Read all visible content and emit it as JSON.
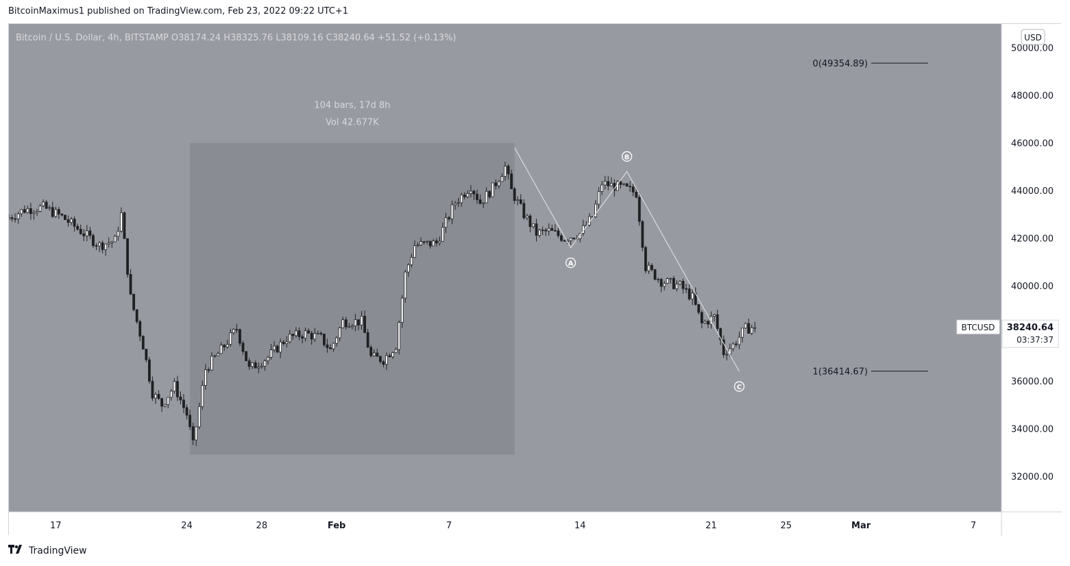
{
  "published_line": "BitcoinMaximus1 published on TradingView.com, Feb 23, 2022 09:22 UTC+1",
  "header": {
    "symbol_title": "Bitcoin / U.S. Dollar, 4h, BITSTAMP",
    "ohlc": [
      {
        "label": "O",
        "value": "38174.24"
      },
      {
        "label": "H",
        "value": "38325.76"
      },
      {
        "label": "L",
        "value": "38109.16"
      },
      {
        "label": "C",
        "value": "38240.64"
      }
    ],
    "change": "+51.52 (+0.13%)"
  },
  "currency_button": "USD",
  "brand": "TradingView",
  "colors": {
    "background": "#989aa2",
    "range_box": "#8a8c94",
    "candle": "#1f2023",
    "wave_line": "#d9dadd",
    "text_light": "#d8d9dc",
    "axis_bg": "#ffffff",
    "axis_text": "#131722"
  },
  "chart_data": {
    "type": "candlestick",
    "interval": "4h",
    "y_axis": {
      "ticks": [
        32000,
        34000,
        36000,
        38000,
        40000,
        42000,
        44000,
        46000,
        48000,
        50000
      ],
      "tick_labels": [
        "32000.00",
        "34000.00",
        "36000.00",
        "38000.00",
        "40000.00",
        "42000.00",
        "44000.00",
        "46000.00",
        "48000.00",
        "50000.00"
      ],
      "ylim": [
        30500,
        51000
      ]
    },
    "x_axis": {
      "tick_labels": [
        "17",
        "24",
        "28",
        "Feb",
        "7",
        "14",
        "21",
        "25",
        "Mar",
        "7"
      ],
      "tick_dates": [
        "2022-01-17",
        "2022-01-24",
        "2022-01-28",
        "2022-02-01",
        "2022-02-07",
        "2022-02-14",
        "2022-02-21",
        "2022-02-25",
        "2022-03-01",
        "2022-03-07"
      ],
      "xlim": [
        "2022-01-14T12:00",
        "2022-03-08T12:00"
      ]
    },
    "price_path": [
      [
        "2022-01-14T12:00",
        42800
      ],
      [
        "2022-01-15T12:00",
        43200
      ],
      [
        "2022-01-16T12:00",
        43300
      ],
      [
        "2022-01-17T12:00",
        42900
      ],
      [
        "2022-01-18T12:00",
        42300
      ],
      [
        "2022-01-19T12:00",
        41700
      ],
      [
        "2022-01-20T08:00",
        41900
      ],
      [
        "2022-01-20T16:00",
        43000
      ],
      [
        "2022-01-21T04:00",
        39500
      ],
      [
        "2022-01-21T20:00",
        37500
      ],
      [
        "2022-01-22T08:00",
        35500
      ],
      [
        "2022-01-22T20:00",
        35000
      ],
      [
        "2022-01-23T12:00",
        35800
      ],
      [
        "2022-01-24T04:00",
        34600
      ],
      [
        "2022-01-24T12:00",
        33300
      ],
      [
        "2022-01-25T04:00",
        36500
      ],
      [
        "2022-01-26T00:00",
        37300
      ],
      [
        "2022-01-26T20:00",
        38200
      ],
      [
        "2022-01-27T12:00",
        36500
      ],
      [
        "2022-01-28T12:00",
        37000
      ],
      [
        "2022-01-29T12:00",
        37800
      ],
      [
        "2022-01-30T12:00",
        38000
      ],
      [
        "2022-01-31T08:00",
        37800
      ],
      [
        "2022-01-31T20:00",
        37300
      ],
      [
        "2022-02-01T12:00",
        38500
      ],
      [
        "2022-02-02T12:00",
        38500
      ],
      [
        "2022-02-03T00:00",
        37000
      ],
      [
        "2022-02-03T16:00",
        36900
      ],
      [
        "2022-02-04T08:00",
        37500
      ],
      [
        "2022-02-04T20:00",
        40500
      ],
      [
        "2022-02-05T08:00",
        41700
      ],
      [
        "2022-02-06T12:00",
        41800
      ],
      [
        "2022-02-07T12:00",
        43500
      ],
      [
        "2022-02-08T08:00",
        44200
      ],
      [
        "2022-02-08T20:00",
        43500
      ],
      [
        "2022-02-09T12:00",
        44100
      ],
      [
        "2022-02-10T04:00",
        45000
      ],
      [
        "2022-02-10T12:00",
        44000
      ],
      [
        "2022-02-11T04:00",
        43000
      ],
      [
        "2022-02-11T20:00",
        42200
      ],
      [
        "2022-02-12T12:00",
        42300
      ],
      [
        "2022-02-13T08:00",
        42000
      ],
      [
        "2022-02-14T04:00",
        42200
      ],
      [
        "2022-02-14T20:00",
        42900
      ],
      [
        "2022-02-15T08:00",
        44300
      ],
      [
        "2022-02-16T12:00",
        44100
      ],
      [
        "2022-02-17T04:00",
        43900
      ],
      [
        "2022-02-17T16:00",
        40800
      ],
      [
        "2022-02-18T12:00",
        40200
      ],
      [
        "2022-02-19T12:00",
        40000
      ],
      [
        "2022-02-20T04:00",
        39500
      ],
      [
        "2022-02-20T16:00",
        38400
      ],
      [
        "2022-02-21T08:00",
        38700
      ],
      [
        "2022-02-21T20:00",
        37200
      ],
      [
        "2022-02-22T08:00",
        37500
      ],
      [
        "2022-02-23T00:00",
        38200
      ],
      [
        "2022-02-23T08:00",
        38240
      ]
    ],
    "last_price": {
      "symbol": "BTCUSD",
      "price": "38240.64",
      "countdown": "03:37:37",
      "value": 38240.64
    },
    "date_range_measure": {
      "start": "2022-01-24T04:00",
      "end": "2022-02-10T12:00",
      "price_low": 32900,
      "price_high": 46000,
      "label_line1": "104 bars, 17d 8h",
      "label_line2": "Vol 42.677K"
    },
    "wave_abc": {
      "points": [
        {
          "time": "2022-02-10T12:00",
          "price": 45800,
          "label": ""
        },
        {
          "time": "2022-02-13T12:00",
          "price": 41600,
          "label": "A"
        },
        {
          "time": "2022-02-16T12:00",
          "price": 44800,
          "label": "B"
        },
        {
          "time": "2022-02-22T12:00",
          "price": 36400,
          "label": "C"
        }
      ]
    },
    "fib_levels": [
      {
        "label": "0(49354.89)",
        "price": 49354.89
      },
      {
        "label": "1(36414.67)",
        "price": 36414.67
      }
    ]
  }
}
